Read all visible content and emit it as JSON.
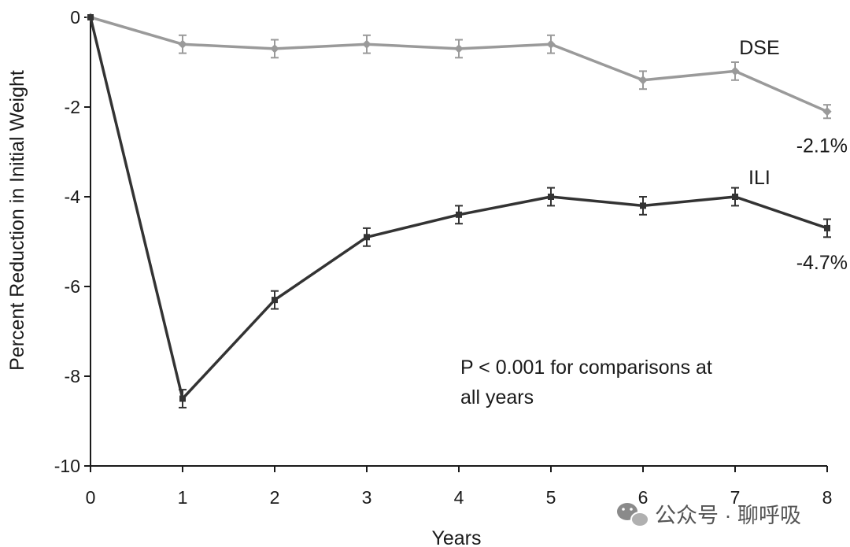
{
  "chart_data": {
    "type": "line",
    "xlabel": "Years",
    "ylabel": "Percent Reduction in Initial Weight",
    "xlim": [
      0,
      8
    ],
    "ylim": [
      -10,
      0
    ],
    "x_ticks": [
      "0",
      "1",
      "2",
      "3",
      "4",
      "5",
      "6",
      "7",
      "8"
    ],
    "y_ticks": [
      "0",
      "-2",
      "-4",
      "-6",
      "-8",
      "-10"
    ],
    "x": [
      0,
      1,
      2,
      3,
      4,
      5,
      6,
      7,
      8
    ],
    "series": [
      {
        "name": "DSE",
        "color": "#9a9a9a",
        "values": [
          0,
          -0.6,
          -0.7,
          -0.6,
          -0.7,
          -0.6,
          -1.4,
          -1.2,
          -2.1
        ],
        "error": [
          0,
          0.2,
          0.2,
          0.2,
          0.2,
          0.2,
          0.2,
          0.2,
          0.15
        ],
        "end_label": "-2.1%"
      },
      {
        "name": "ILI",
        "color": "#333333",
        "values": [
          0,
          -8.5,
          -6.3,
          -4.9,
          -4.4,
          -4.0,
          -4.2,
          -4.0,
          -4.7
        ],
        "error": [
          0,
          0.2,
          0.2,
          0.2,
          0.2,
          0.2,
          0.2,
          0.2,
          0.2
        ],
        "end_label": "-4.7%"
      }
    ],
    "annotation": [
      "P < 0.001 for comparisons at",
      "all years"
    ],
    "grid": false
  },
  "watermark": {
    "icon": "wechat-icon",
    "text": "公众号 · 聊呼吸"
  }
}
